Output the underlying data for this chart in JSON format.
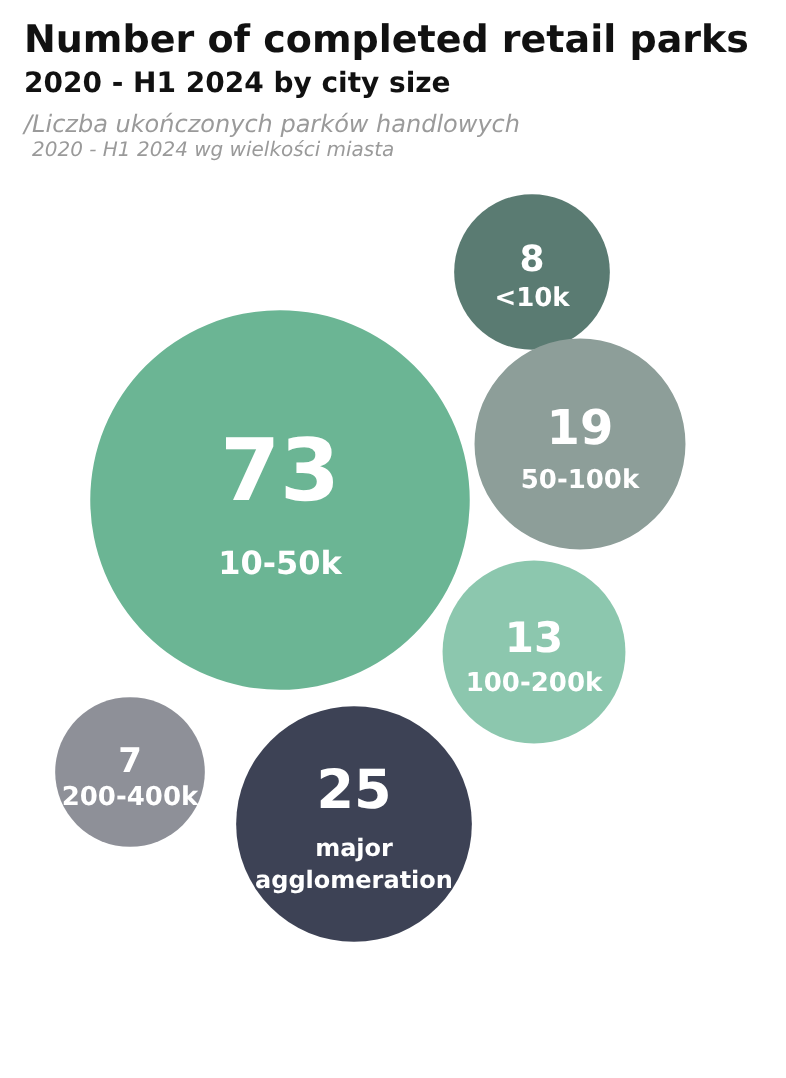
{
  "chart_data": {
    "type": "other",
    "title": "Number of completed retail parks",
    "subtitle": "2020 - H1 2024 by city size",
    "annotations": [
      "/Liczba ukończonych parków handlowych",
      "2020 - H1 2024 wg wielkości miasta"
    ],
    "categories": [
      "<10k",
      "10-50k",
      "50-100k",
      "100-200k",
      "200-400k",
      "major agglomeration"
    ],
    "values": [
      8,
      73,
      19,
      13,
      7,
      25
    ],
    "colors": [
      "#5a7b72",
      "#6bb594",
      "#8d9e99",
      "#8cc7ae",
      "#8e9098",
      "#3d4255"
    ],
    "data_labels": true
  }
}
